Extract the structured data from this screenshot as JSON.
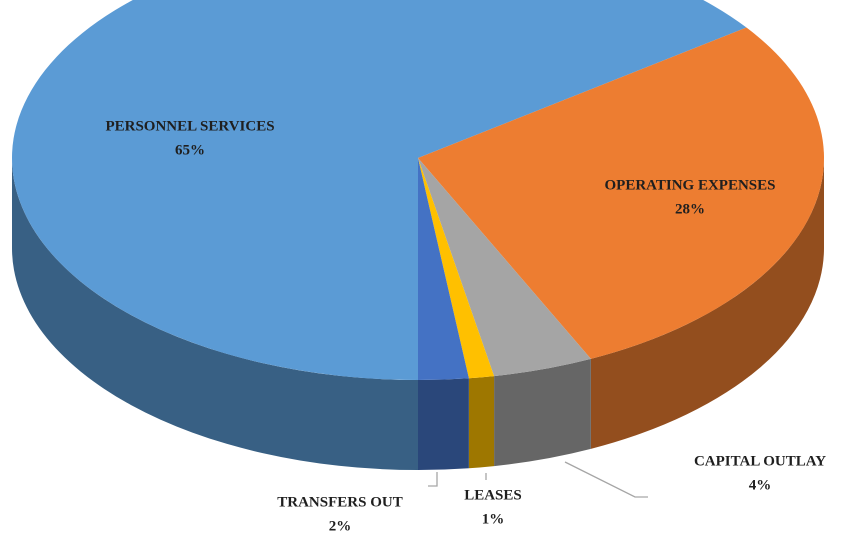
{
  "chart_data": {
    "type": "pie3d",
    "categories": [
      "PERSONNEL SERVICES",
      "OPERATING EXPENSES",
      "CAPITAL OUTLAY",
      "LEASES",
      "TRANSFERS OUT"
    ],
    "values": [
      65,
      28,
      4,
      1,
      2
    ],
    "value_labels": [
      "65%",
      "28%",
      "4%",
      "1%",
      "2%"
    ],
    "colors": [
      "#5b9bd5",
      "#ed7d31",
      "#a5a5a5",
      "#ffc000",
      "#4472c4"
    ]
  }
}
